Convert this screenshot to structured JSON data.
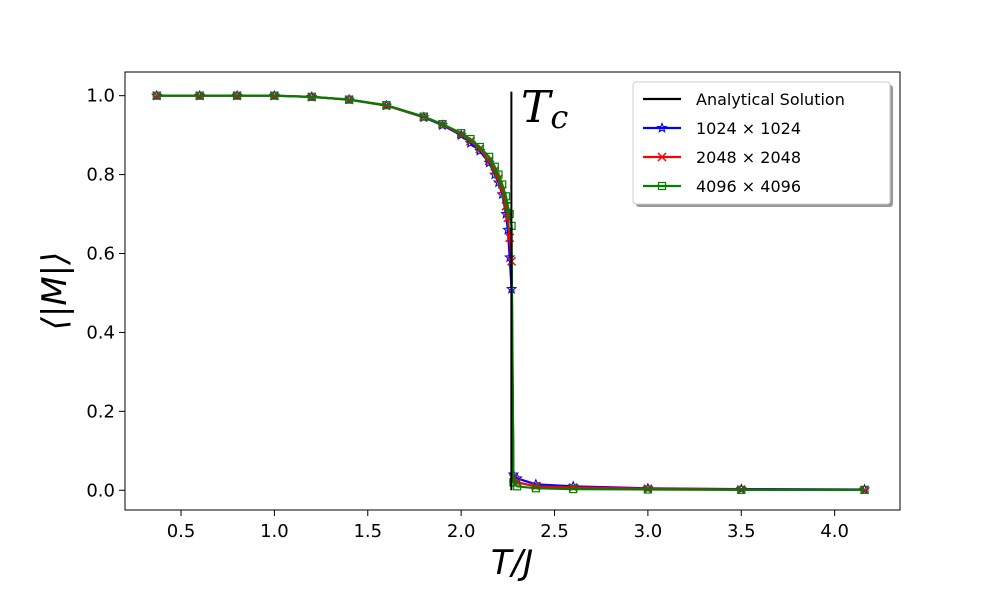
{
  "chart_data": {
    "type": "line",
    "title": "",
    "xlabel": "T/J",
    "ylabel": "⟨|M|⟩",
    "xlim": [
      0.2,
      4.35
    ],
    "ylim": [
      -0.05,
      1.06
    ],
    "xticks": [
      "0.5",
      "1.0",
      "1.5",
      "2.0",
      "2.5",
      "3.0",
      "3.5",
      "4.0"
    ],
    "yticks": [
      "0.0",
      "0.2",
      "0.4",
      "0.6",
      "0.8",
      "1.0"
    ],
    "grid": false,
    "legend_position": "top-right",
    "annotation": {
      "text": "T",
      "subscript": "c",
      "x": 2.269
    },
    "analytical": {
      "name": "Analytical Solution",
      "color": "#000000",
      "x": [
        2.269,
        2.269
      ],
      "y": [
        0.0,
        1.0
      ]
    },
    "series": [
      {
        "name": "1024 × 1024",
        "color": "#0000ff",
        "marker": "star",
        "x": [
          0.37,
          0.6,
          0.8,
          1.0,
          1.2,
          1.4,
          1.6,
          1.8,
          1.9,
          2.0,
          2.05,
          2.1,
          2.15,
          2.18,
          2.2,
          2.22,
          2.24,
          2.25,
          2.26,
          2.27,
          2.28,
          2.3,
          2.4,
          2.6,
          3.0,
          3.5,
          4.16
        ],
        "y": [
          1.0,
          1.0,
          1.0,
          1.0,
          0.997,
          0.99,
          0.975,
          0.945,
          0.925,
          0.9,
          0.88,
          0.86,
          0.83,
          0.8,
          0.78,
          0.75,
          0.7,
          0.66,
          0.59,
          0.51,
          0.04,
          0.03,
          0.015,
          0.01,
          0.005,
          0.003,
          0.002
        ]
      },
      {
        "name": "2048 × 2048",
        "color": "#ff0000",
        "marker": "x",
        "x": [
          0.37,
          0.6,
          0.8,
          1.0,
          1.2,
          1.4,
          1.6,
          1.8,
          1.9,
          2.0,
          2.05,
          2.1,
          2.15,
          2.18,
          2.2,
          2.22,
          2.24,
          2.25,
          2.26,
          2.27,
          2.28,
          2.3,
          2.4,
          2.6,
          3.0,
          3.5,
          4.16
        ],
        "y": [
          1.0,
          1.0,
          1.0,
          1.0,
          0.997,
          0.99,
          0.975,
          0.946,
          0.927,
          0.902,
          0.885,
          0.865,
          0.835,
          0.81,
          0.79,
          0.76,
          0.72,
          0.69,
          0.64,
          0.58,
          0.03,
          0.02,
          0.01,
          0.007,
          0.004,
          0.002,
          0.001
        ]
      },
      {
        "name": "4096 × 4096",
        "color": "#008000",
        "marker": "square",
        "x": [
          0.37,
          0.6,
          0.8,
          1.0,
          1.2,
          1.4,
          1.6,
          1.8,
          1.9,
          2.0,
          2.05,
          2.1,
          2.15,
          2.18,
          2.2,
          2.22,
          2.24,
          2.25,
          2.26,
          2.27,
          2.28,
          2.3,
          2.4,
          2.6,
          3.0,
          3.5,
          4.16
        ],
        "y": [
          1.0,
          1.0,
          1.0,
          1.0,
          0.997,
          0.99,
          0.976,
          0.947,
          0.928,
          0.905,
          0.89,
          0.87,
          0.845,
          0.82,
          0.8,
          0.775,
          0.745,
          0.72,
          0.7,
          0.67,
          0.02,
          0.01,
          0.005,
          0.003,
          0.002,
          0.001,
          0.001
        ]
      }
    ]
  }
}
